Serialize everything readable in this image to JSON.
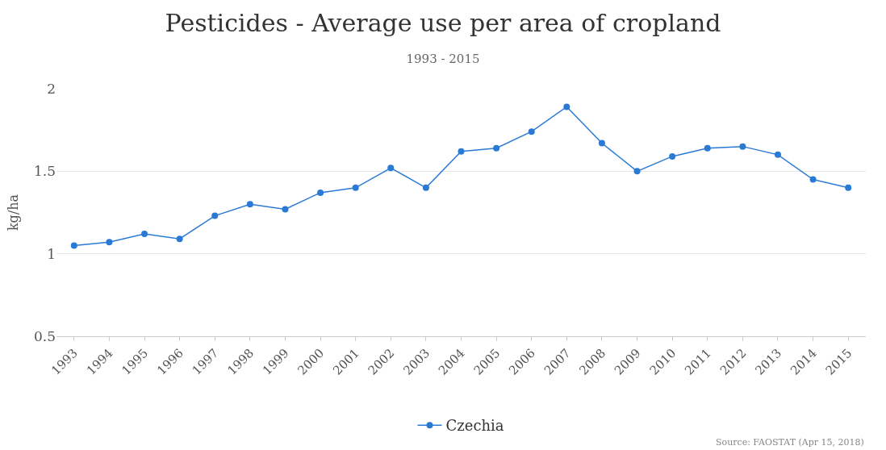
{
  "chart_data": {
    "type": "line",
    "title": "Pesticides - Average use per area of cropland",
    "subtitle": "1993 - 2015",
    "ylabel": "kg/ha",
    "categories": [
      "1993",
      "1994",
      "1995",
      "1996",
      "1997",
      "1998",
      "1999",
      "2000",
      "2001",
      "2002",
      "2003",
      "2004",
      "2005",
      "2006",
      "2007",
      "2008",
      "2009",
      "2010",
      "2011",
      "2012",
      "2013",
      "2014",
      "2015"
    ],
    "series": [
      {
        "name": "Czechia",
        "color": "#2a7ad5",
        "values": [
          1.05,
          1.07,
          1.12,
          1.09,
          1.23,
          1.3,
          1.27,
          1.37,
          1.4,
          1.52,
          1.4,
          1.62,
          1.64,
          1.74,
          1.89,
          1.67,
          1.5,
          1.59,
          1.64,
          1.65,
          1.6,
          1.45,
          1.4
        ]
      }
    ],
    "ylim": [
      0.5,
      2
    ],
    "yticks": [
      0.5,
      1,
      1.5,
      2
    ],
    "grid": "y",
    "legend": "bottom",
    "marker": "circle",
    "line_style": "solid",
    "annotations": [
      "Source: FAOSTAT (Apr 15, 2018)"
    ]
  }
}
